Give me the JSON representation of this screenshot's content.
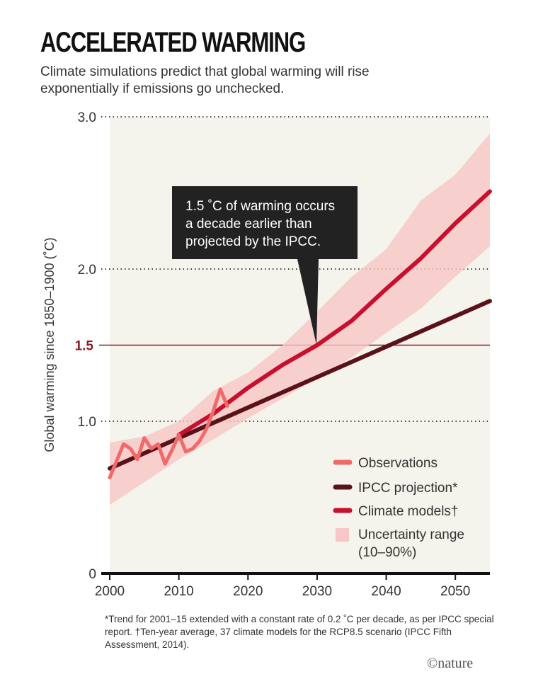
{
  "chart_data": {
    "type": "line",
    "title": "ACCELERATED WARMING",
    "subtitle": "Climate simulations predict that global warming will rise exponentially if emissions go unchecked.",
    "ylabel": "Global warming since 1850–1900 (˚C)",
    "xlabel": "",
    "xlim": [
      2000,
      2055
    ],
    "ylim": [
      0,
      3.0
    ],
    "xticks": [
      "2000",
      "2010",
      "2020",
      "2030",
      "2040",
      "2050"
    ],
    "yticks": [
      "0",
      "1.0",
      "1.5",
      "2.0",
      "3.0"
    ],
    "threshold": 1.5,
    "grid": "dotted horizontal",
    "legend_position": "bottom-right",
    "series": [
      {
        "name": "Observations",
        "color": "#ef6b6b",
        "x": [
          2000,
          2002,
          2003,
          2004,
          2005,
          2006,
          2007,
          2008,
          2009,
          2010,
          2011,
          2012,
          2013,
          2014,
          2015,
          2016,
          2017
        ],
        "y": [
          0.63,
          0.85,
          0.82,
          0.75,
          0.89,
          0.82,
          0.85,
          0.72,
          0.81,
          0.91,
          0.8,
          0.82,
          0.87,
          0.95,
          1.07,
          1.21,
          1.1
        ]
      },
      {
        "name": "IPCC projection*",
        "color": "#5a1219",
        "x": [
          2000,
          2055
        ],
        "y": [
          0.69,
          1.79
        ]
      },
      {
        "name": "Climate models†",
        "color": "#c8102e",
        "x": [
          2010,
          2015,
          2020,
          2025,
          2030,
          2035,
          2040,
          2045,
          2050,
          2055
        ],
        "y": [
          0.91,
          1.05,
          1.22,
          1.37,
          1.5,
          1.66,
          1.87,
          2.07,
          2.3,
          2.51
        ]
      }
    ],
    "band": {
      "name": "Uncertainty range (10–90%)",
      "color": "#f8c6c6",
      "x": [
        2000,
        2005,
        2010,
        2015,
        2020,
        2025,
        2030,
        2035,
        2040,
        2045,
        2050,
        2055
      ],
      "upper": [
        0.86,
        0.9,
        1.0,
        1.2,
        1.32,
        1.5,
        1.72,
        1.95,
        2.13,
        2.45,
        2.62,
        2.89
      ],
      "lower": [
        0.45,
        0.6,
        0.75,
        0.88,
        1.02,
        1.15,
        1.28,
        1.42,
        1.58,
        1.74,
        1.95,
        2.15
      ]
    },
    "annotation": "1.5 ˚C of warming occurs a decade earlier than projected by the IPCC.",
    "annotation_lines": [
      "1.5 ˚C of warming occurs",
      "a decade earlier than",
      "projected by the IPCC."
    ],
    "legend": [
      "Observations",
      "IPCC projection*",
      "Climate models†",
      "Uncertainty range",
      "(10–90%)"
    ]
  },
  "footnote": "*Trend for 2001–15 extended with a constant rate of 0.2 ˚C per decade, as per IPCC special report. †Ten-year average, 37 climate models for the RCP8.5 scenario (IPCC Fifth Assessment, 2014).",
  "credit": "©nature"
}
